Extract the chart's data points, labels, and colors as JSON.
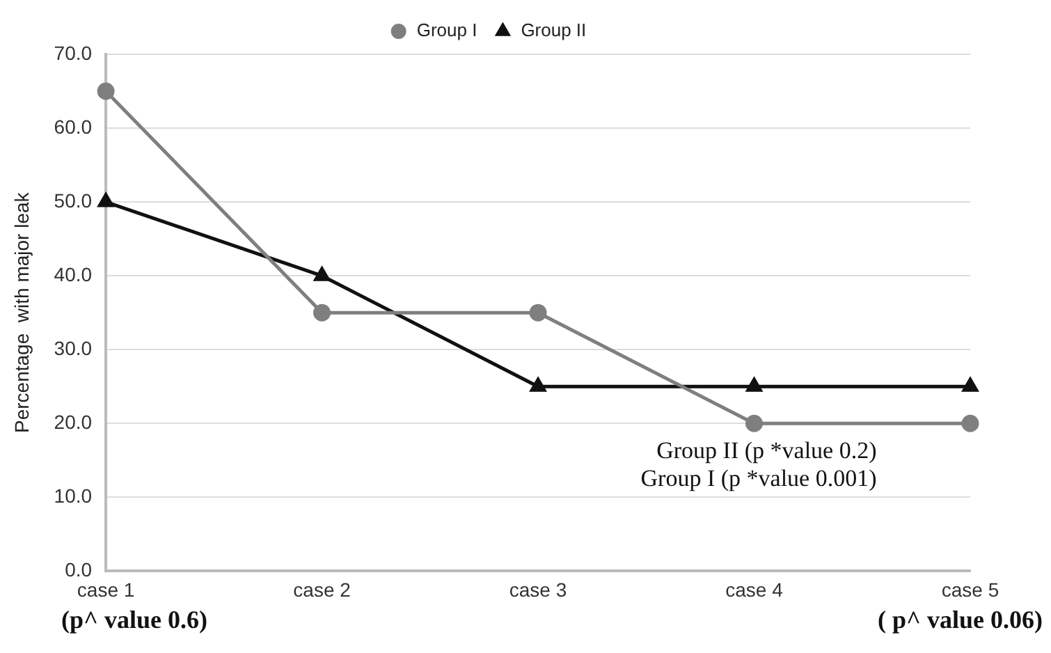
{
  "chart_data": {
    "type": "line",
    "ylabel": "Percentage  with major leak",
    "categories": [
      "case 1",
      "case 2",
      "case 3",
      "case 4",
      "case 5"
    ],
    "series": [
      {
        "name": "Group I",
        "color": "#7f7f7f",
        "marker": "circle",
        "values": [
          65,
          35,
          35,
          20,
          20
        ]
      },
      {
        "name": "Group II",
        "color": "#111111",
        "marker": "triangle",
        "values": [
          50,
          40,
          25,
          25,
          25
        ]
      }
    ],
    "ylim": [
      0,
      70
    ],
    "yticks": [
      {
        "value": 0,
        "label": "0.0"
      },
      {
        "value": 10,
        "label": "10.0"
      },
      {
        "value": 20,
        "label": "20.0"
      },
      {
        "value": 30,
        "label": "30.0"
      },
      {
        "value": 40,
        "label": "40.0"
      },
      {
        "value": 50,
        "label": "50.0"
      },
      {
        "value": 60,
        "label": "60.0"
      },
      {
        "value": 70,
        "label": "70.0"
      }
    ],
    "grid": "y",
    "legend": "top",
    "line_style": "solid",
    "annotations": [
      "Group II (p *value 0.2)",
      "Group I (p *value 0.001)",
      "(p^ value 0.6)",
      "( p^ value 0.06)"
    ]
  }
}
